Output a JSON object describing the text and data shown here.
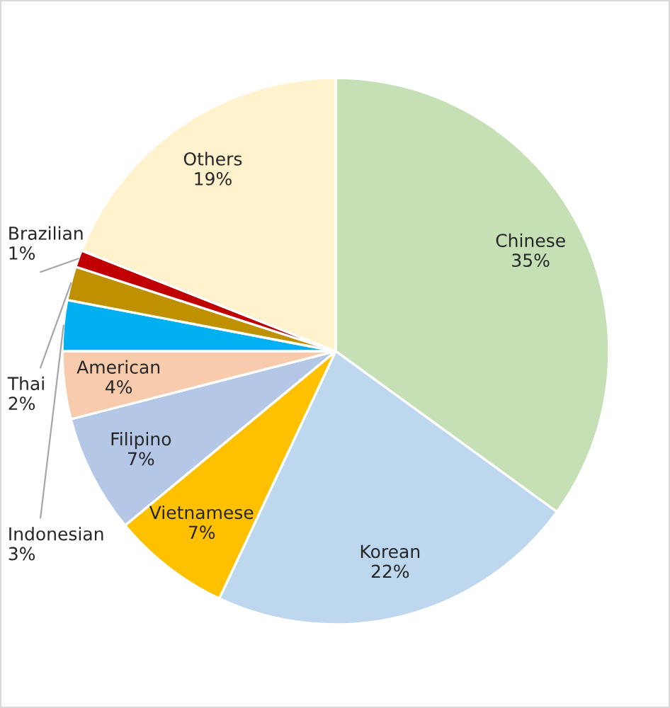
{
  "chart_data": {
    "type": "pie",
    "categories": [
      "Chinese",
      "Korean",
      "Vietnamese",
      "Filipino",
      "American",
      "Indonesian",
      "Thai",
      "Brazilian",
      "Others"
    ],
    "values": [
      35,
      22,
      7,
      7,
      4,
      3,
      2,
      1,
      19
    ],
    "value_labels": [
      "35%",
      "22%",
      "7%",
      "7%",
      "4%",
      "3%",
      "2%",
      "1%",
      "19%"
    ],
    "colors": [
      "#c5e0b4",
      "#bdd7ee",
      "#ffc000",
      "#b4c7e7",
      "#f8cbad",
      "#00b0f0",
      "#bf9000",
      "#c00000",
      "#fff2cc"
    ]
  }
}
